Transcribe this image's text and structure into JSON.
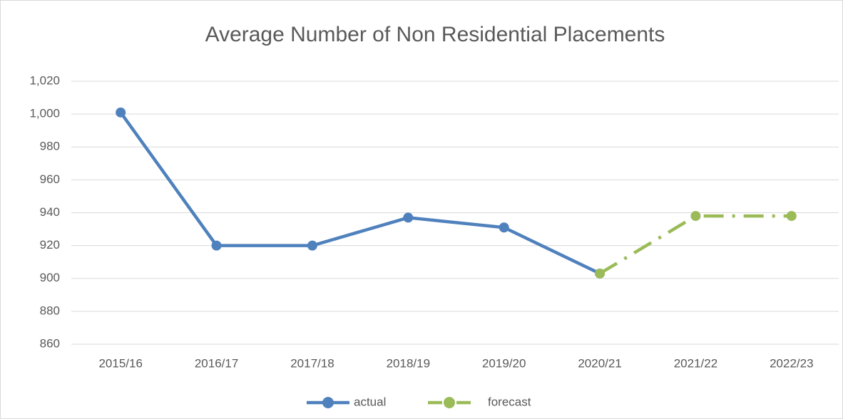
{
  "chart_data": {
    "type": "line",
    "title": "Average Number of Non Residential Placements",
    "categories": [
      "2015/16",
      "2016/17",
      "2017/18",
      "2018/19",
      "2019/20",
      "2020/21",
      "2021/22",
      "2022/23"
    ],
    "series": [
      {
        "name": "actual",
        "color": "#4f81bd",
        "line_style": "solid",
        "values": [
          1001,
          920,
          920,
          937,
          931,
          903,
          null,
          null
        ]
      },
      {
        "name": "forecast",
        "color": "#9bbb59",
        "line_style": "dash-dot",
        "values": [
          null,
          null,
          null,
          null,
          null,
          903,
          938,
          938
        ]
      }
    ],
    "ylim": [
      860,
      1020
    ],
    "yticks": [
      860,
      880,
      900,
      920,
      940,
      960,
      980,
      {
        "value": 1000,
        "label": "1,000"
      },
      {
        "value": 1020,
        "label": "1,020"
      }
    ],
    "grid": true,
    "legend": "bottom"
  }
}
